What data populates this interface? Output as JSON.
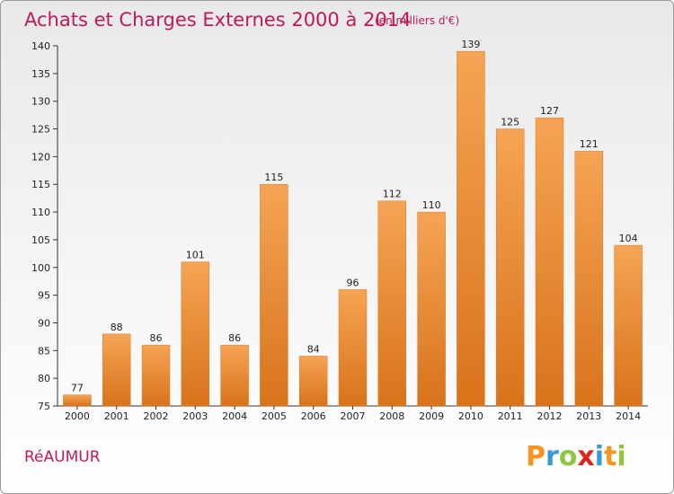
{
  "title": "Achats et Charges Externes 2000 à 2014",
  "unit": "(en milliers d'€)",
  "commune": "RéAUMUR",
  "logo": {
    "text": "Proxiti",
    "colors": [
      "#f7941d",
      "#3a9ad9",
      "#8dc63f",
      "#e2231a",
      "#3a9ad9",
      "#f7941d",
      "#8dc63f"
    ]
  },
  "colors": {
    "bar_top": "#f5a455",
    "bar_bottom": "#d8731b",
    "bar_stroke": "#e07b22",
    "title": "#c2185b"
  },
  "chart_data": {
    "type": "bar",
    "title": "Achats et Charges Externes 2000 à 2014",
    "xlabel": "",
    "ylabel": "",
    "categories": [
      "2000",
      "2001",
      "2002",
      "2003",
      "2004",
      "2005",
      "2006",
      "2007",
      "2008",
      "2009",
      "2010",
      "2011",
      "2012",
      "2013",
      "2014"
    ],
    "values": [
      77,
      88,
      86,
      101,
      86,
      115,
      84,
      96,
      112,
      110,
      139,
      125,
      127,
      121,
      104
    ],
    "ylim": [
      75,
      140
    ],
    "yticks": [
      75,
      80,
      85,
      90,
      95,
      100,
      105,
      110,
      115,
      120,
      125,
      130,
      135,
      140
    ],
    "grid": false,
    "legend": "none"
  }
}
